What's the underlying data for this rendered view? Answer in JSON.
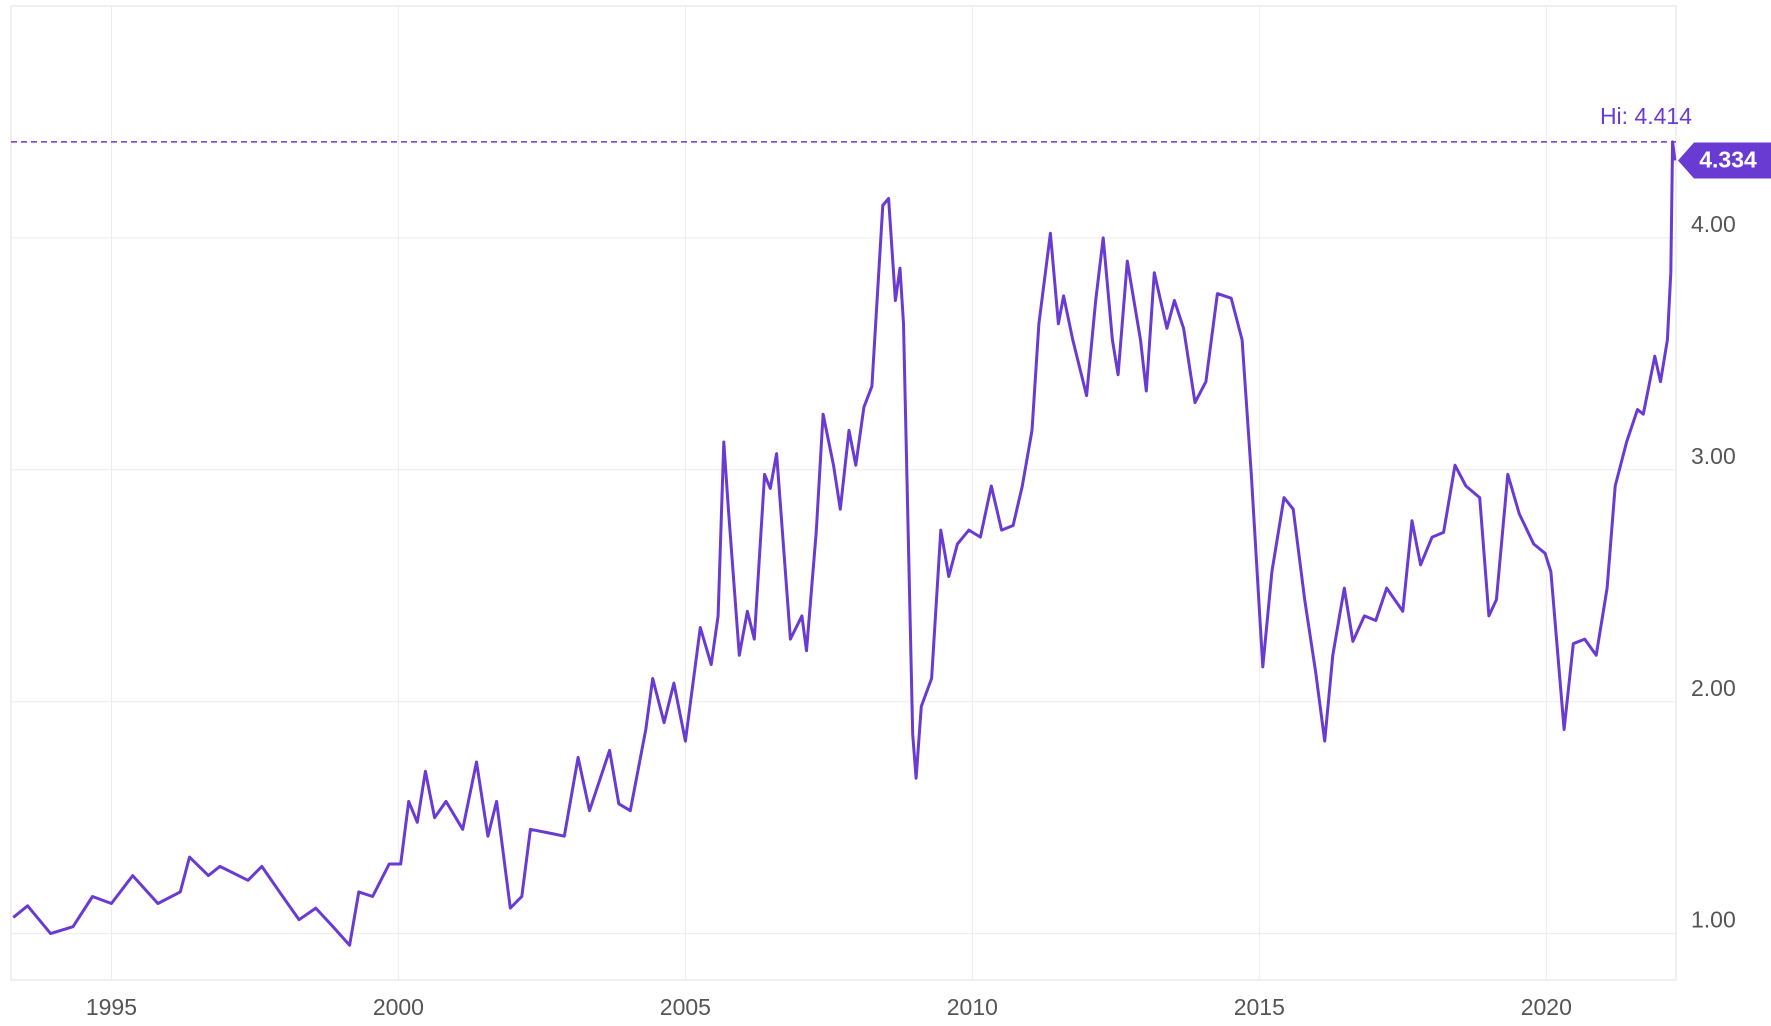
{
  "chart_data": {
    "type": "line",
    "color": "#6a3bd2",
    "x": [
      1993.29,
      1993.54,
      1993.94,
      1994.33,
      1994.67,
      1995.0,
      1995.37,
      1995.81,
      1996.2,
      1996.36,
      1996.69,
      1996.89,
      1997.38,
      1997.62,
      1998.07,
      1998.27,
      1998.56,
      1998.86,
      1999.15,
      1999.31,
      1999.55,
      1999.84,
      2000.04,
      2000.18,
      2000.33,
      2000.47,
      2000.63,
      2000.83,
      2001.12,
      2001.36,
      2001.56,
      2001.71,
      2001.95,
      2002.15,
      2002.3,
      2002.7,
      2002.89,
      2003.13,
      2003.33,
      2003.68,
      2003.84,
      2004.04,
      2004.31,
      2004.43,
      2004.63,
      2004.8,
      2005.0,
      2005.26,
      2005.45,
      2005.57,
      2005.67,
      2005.75,
      2005.94,
      2006.08,
      2006.2,
      2006.38,
      2006.48,
      2006.59,
      2006.83,
      2007.03,
      2007.11,
      2007.28,
      2007.4,
      2007.58,
      2007.7,
      2007.85,
      2007.97,
      2008.11,
      2008.25,
      2008.44,
      2008.54,
      2008.66,
      2008.74,
      2008.8,
      2008.96,
      2009.02,
      2009.11,
      2009.29,
      2009.45,
      2009.59,
      2009.74,
      2009.94,
      2010.14,
      2010.33,
      2010.51,
      2010.71,
      2010.87,
      2011.04,
      2011.16,
      2011.36,
      2011.5,
      2011.59,
      2011.75,
      2011.99,
      2012.15,
      2012.28,
      2012.44,
      2012.54,
      2012.7,
      2012.93,
      2013.03,
      2013.17,
      2013.39,
      2013.52,
      2013.68,
      2013.88,
      2014.07,
      2014.27,
      2014.51,
      2014.7,
      2014.86,
      2015.06,
      2015.22,
      2015.43,
      2015.59,
      2015.79,
      2015.98,
      2016.14,
      2016.28,
      2016.48,
      2016.63,
      2016.83,
      2017.03,
      2017.22,
      2017.5,
      2017.66,
      2017.81,
      2018.01,
      2018.21,
      2018.41,
      2018.6,
      2018.84,
      2019.0,
      2019.13,
      2019.33,
      2019.53,
      2019.78,
      2019.98,
      2020.08,
      2020.31,
      2020.47,
      2020.67,
      2020.87,
      2021.06,
      2021.2,
      2021.4,
      2021.59,
      2021.69,
      2021.89,
      2021.99,
      2022.11,
      2022.17,
      2022.2,
      2022.24
    ],
    "values": [
      1.07,
      1.12,
      1.0,
      1.03,
      1.16,
      1.13,
      1.25,
      1.13,
      1.18,
      1.33,
      1.25,
      1.29,
      1.23,
      1.29,
      1.13,
      1.06,
      1.11,
      1.03,
      0.95,
      1.18,
      1.16,
      1.3,
      1.3,
      1.57,
      1.48,
      1.7,
      1.5,
      1.57,
      1.45,
      1.74,
      1.42,
      1.57,
      1.11,
      1.16,
      1.45,
      1.43,
      1.42,
      1.76,
      1.53,
      1.79,
      1.56,
      1.53,
      1.88,
      2.1,
      1.91,
      2.08,
      1.83,
      2.32,
      2.16,
      2.37,
      3.12,
      2.83,
      2.2,
      2.39,
      2.27,
      2.98,
      2.92,
      3.07,
      2.27,
      2.37,
      2.22,
      2.73,
      3.24,
      3.02,
      2.83,
      3.17,
      3.02,
      3.27,
      3.36,
      4.14,
      4.17,
      3.73,
      3.87,
      3.63,
      1.86,
      1.67,
      1.98,
      2.1,
      2.74,
      2.54,
      2.68,
      2.74,
      2.71,
      2.93,
      2.74,
      2.76,
      2.93,
      3.17,
      3.63,
      4.02,
      3.63,
      3.75,
      3.56,
      3.32,
      3.73,
      4.0,
      3.56,
      3.41,
      3.9,
      3.56,
      3.34,
      3.85,
      3.61,
      3.73,
      3.61,
      3.29,
      3.38,
      3.76,
      3.74,
      3.56,
      2.98,
      2.15,
      2.56,
      2.88,
      2.83,
      2.44,
      2.13,
      1.83,
      2.2,
      2.49,
      2.26,
      2.37,
      2.35,
      2.49,
      2.39,
      2.78,
      2.59,
      2.71,
      2.73,
      3.02,
      2.93,
      2.88,
      2.37,
      2.44,
      2.98,
      2.81,
      2.68,
      2.64,
      2.56,
      1.88,
      2.25,
      2.27,
      2.2,
      2.49,
      2.93,
      3.12,
      3.26,
      3.24,
      3.49,
      3.38,
      3.56,
      3.85,
      4.414,
      4.334
    ],
    "xlim": [
      1993.25,
      2022.26
    ],
    "xticks": [
      1995,
      2000,
      2005,
      2010,
      2015,
      2020
    ],
    "ylim": [
      0.8,
      5.0
    ],
    "yticks": [
      {
        "value": 1,
        "label": "1.00"
      },
      {
        "value": 2,
        "label": "2.00"
      },
      {
        "value": 3,
        "label": "3.00"
      },
      {
        "value": 4,
        "label": "4.00"
      }
    ],
    "hi": {
      "value": 4.414,
      "label": "Hi: 4.414"
    },
    "grid": true
  }
}
